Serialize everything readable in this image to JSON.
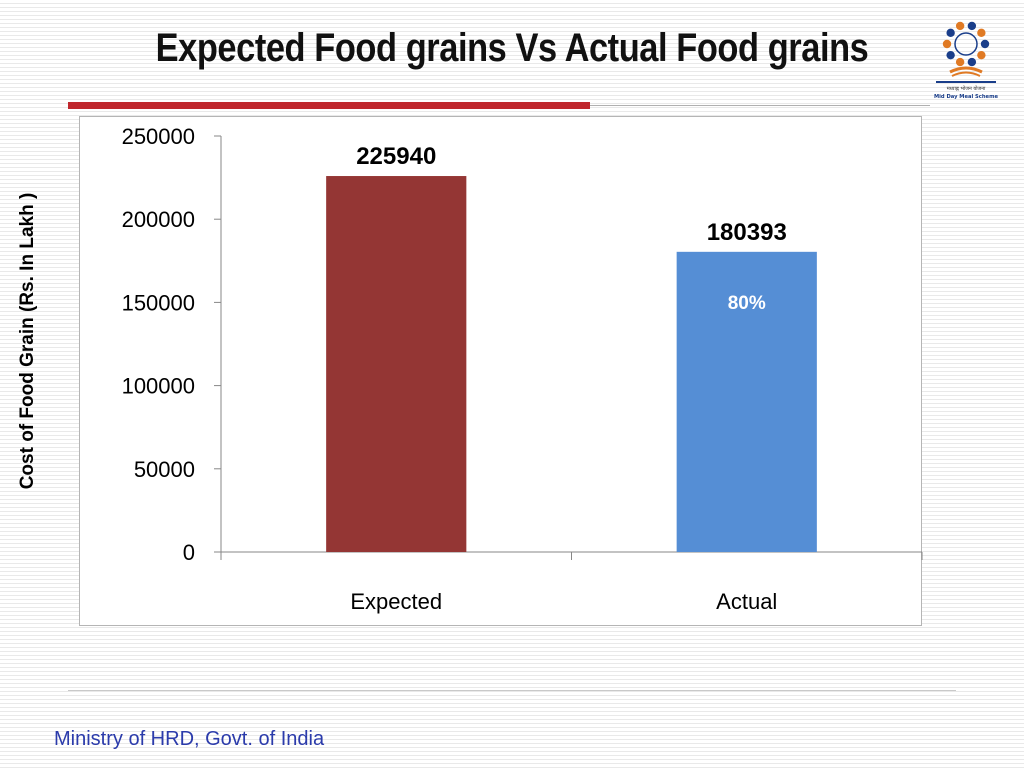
{
  "slide": {
    "title": "Expected Food grains Vs Actual Food grains",
    "footer": "Ministry of HRD, Govt. of India",
    "logo_icon": "mid-day-meal-scheme-logo",
    "logo_caption": "Mid Day Meal Scheme"
  },
  "colors": {
    "title_rule": "#c0272d",
    "footer_text": "#2b3bab"
  },
  "chart_data": {
    "type": "bar",
    "categories": [
      "Expected",
      "Actual"
    ],
    "values": [
      225940,
      180393
    ],
    "bar_colors": [
      "#943634",
      "#558ed5"
    ],
    "data_labels": [
      "225940",
      "180393"
    ],
    "annotations": [
      {
        "category": "Actual",
        "text": "80%",
        "color": "#ffffff"
      }
    ],
    "title": "",
    "xlabel": "",
    "ylabel": "Cost of Food Grain (Rs. In Lakh )",
    "ylim": [
      0,
      250000
    ],
    "yticks": [
      0,
      50000,
      100000,
      150000,
      200000,
      250000
    ],
    "grid": false,
    "legend": "none"
  }
}
